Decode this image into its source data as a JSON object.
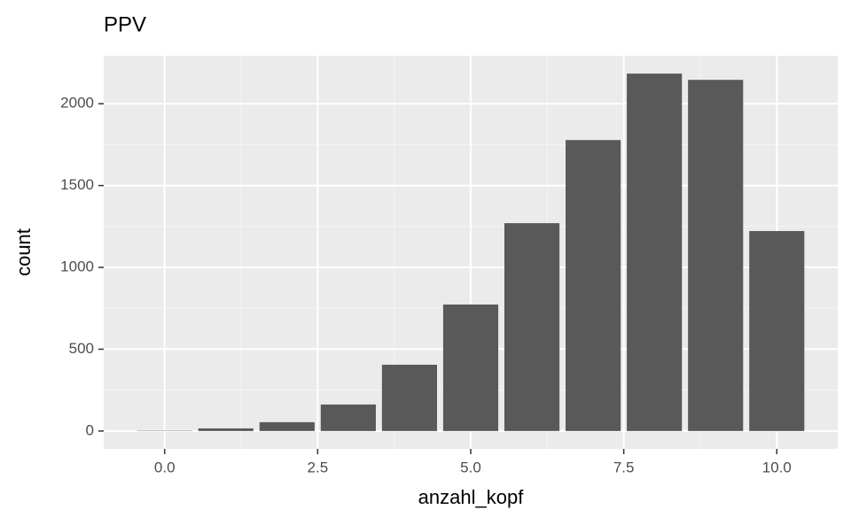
{
  "chart_data": {
    "type": "bar",
    "title": "PPV",
    "x_label": "anzahl_kopf",
    "y_label": "count",
    "x": [
      0,
      1,
      2,
      3,
      4,
      5,
      6,
      7,
      8,
      9,
      10
    ],
    "values": [
      2,
      16,
      54,
      162,
      405,
      773,
      1270,
      1778,
      2184,
      2146,
      1222
    ],
    "bar_width": 0.9,
    "color": "#595959",
    "xlim": [
      -0.995,
      10.995
    ],
    "xticks": [
      {
        "value": 0,
        "label": "0.0"
      },
      2.5,
      {
        "value": 5,
        "label": "5.0"
      },
      7.5,
      {
        "value": 10,
        "label": "10.0"
      }
    ],
    "ylim": [
      -109,
      2293
    ],
    "yticks": [
      0,
      500,
      1000,
      1500,
      2000
    ],
    "grid": true
  }
}
